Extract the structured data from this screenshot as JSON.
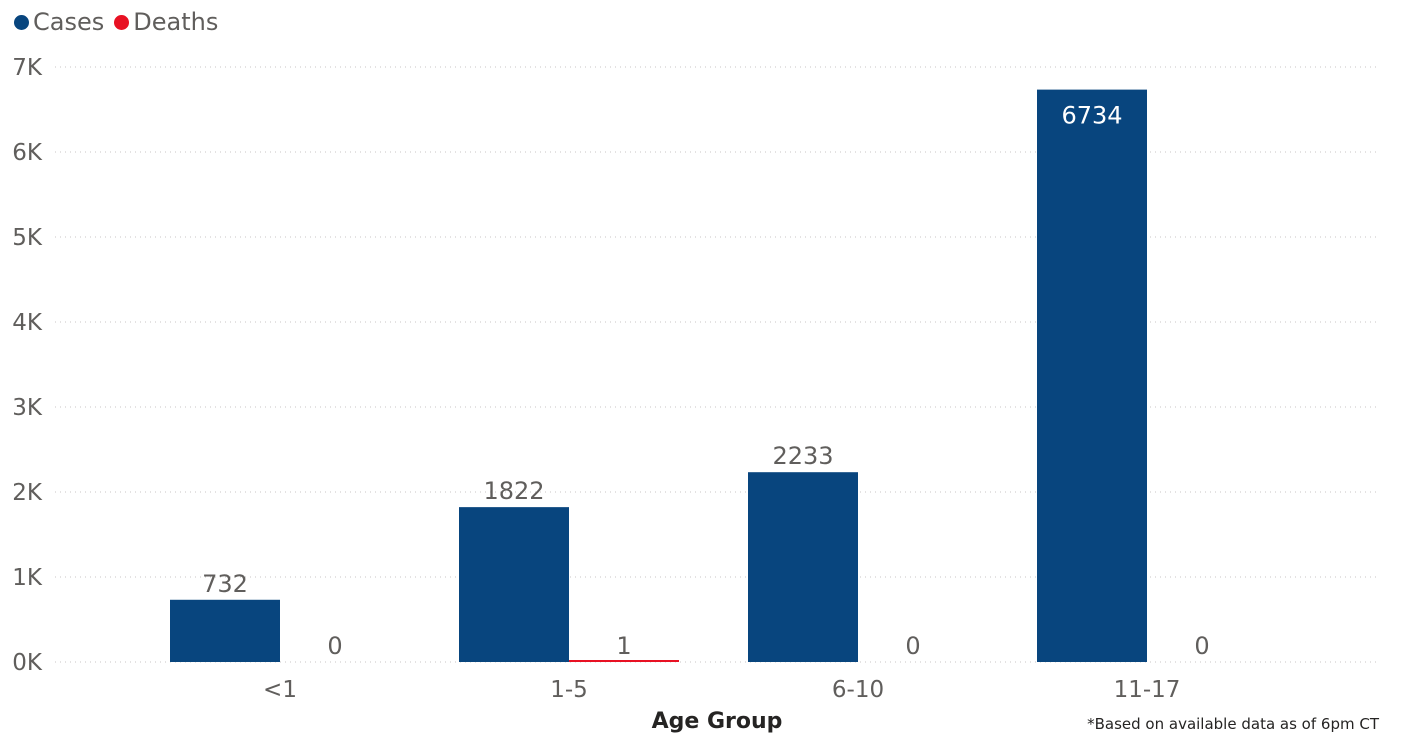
{
  "chart_data": {
    "type": "bar",
    "categories": [
      "<1",
      "1-5",
      "6-10",
      "11-17"
    ],
    "series": [
      {
        "name": "Cases",
        "color": "#08457e",
        "values": [
          732,
          1822,
          2233,
          6734
        ]
      },
      {
        "name": "Deaths",
        "color": "#e81123",
        "values": [
          0,
          1,
          0,
          0
        ]
      }
    ],
    "ylim": [
      0,
      7000
    ],
    "yticks": [
      0,
      1000,
      2000,
      3000,
      4000,
      5000,
      6000,
      7000
    ],
    "ytick_labels": [
      "0K",
      "1K",
      "2K",
      "3K",
      "4K",
      "5K",
      "6K",
      "7K"
    ],
    "xlabel": "Age Group",
    "ylabel": "",
    "legend_position": "top-left",
    "grid": true,
    "data_labels": true,
    "footnote": "*Based on available data as of 6pm CT"
  }
}
